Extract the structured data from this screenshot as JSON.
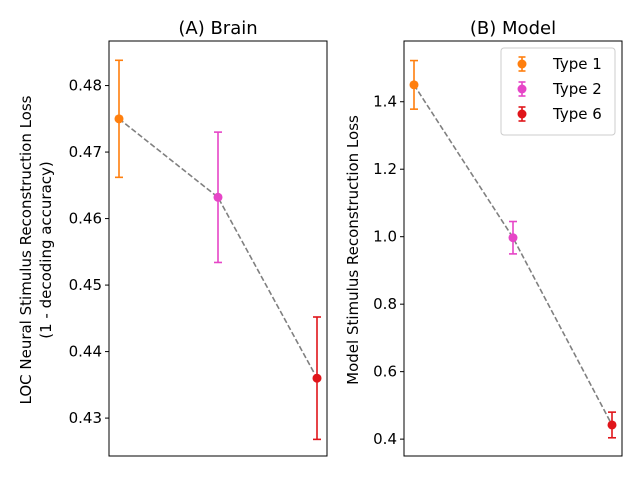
{
  "chart_data": [
    {
      "type": "scatter",
      "title": "(A) Brain",
      "xlabel": "",
      "ylabel_lines": [
        "LOC Neural Stimulus Reconstruction Loss",
        "(1 - decoding accuracy)"
      ],
      "categories": [
        "Type 1",
        "Type 2",
        "Type 6"
      ],
      "x": [
        0,
        1,
        2
      ],
      "values": [
        0.475,
        0.4632,
        0.436
      ],
      "errors": [
        0.0088,
        0.0098,
        0.0092
      ],
      "ylim": [
        0.4243,
        0.4867
      ],
      "yticks": [
        0.43,
        0.44,
        0.45,
        0.46,
        0.47,
        0.48
      ],
      "yticklabels": [
        "0.43",
        "0.44",
        "0.45",
        "0.46",
        "0.47",
        "0.48"
      ],
      "colors": [
        "#ff7f0e",
        "#e645c7",
        "#e0151a"
      ],
      "trend_line_color": "#808080",
      "grid": false,
      "legend": false
    },
    {
      "type": "scatter",
      "title": "(B) Model",
      "xlabel": "",
      "ylabel_lines": [
        "Model Stimulus Reconstruction Loss"
      ],
      "categories": [
        "Type 1",
        "Type 2",
        "Type 6"
      ],
      "x": [
        0,
        1,
        2
      ],
      "values": [
        1.45,
        0.997,
        0.442
      ],
      "errors": [
        0.072,
        0.048,
        0.038
      ],
      "ylim": [
        0.35,
        1.58
      ],
      "yticks": [
        0.4,
        0.6,
        0.8,
        1.0,
        1.2,
        1.4
      ],
      "yticklabels": [
        "0.4",
        "0.6",
        "0.8",
        "1.0",
        "1.2",
        "1.4"
      ],
      "colors": [
        "#ff7f0e",
        "#e645c7",
        "#e0151a"
      ],
      "trend_line_color": "#808080",
      "grid": false,
      "legend": true,
      "legend_position": "top-right",
      "legend_entries": [
        "Type 1",
        "Type 2",
        "Type 6"
      ]
    }
  ]
}
